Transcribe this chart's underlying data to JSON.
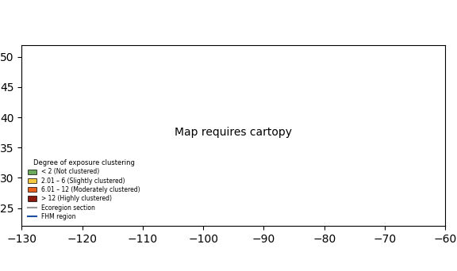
{
  "title": "",
  "legend_title": "Degree of exposure clustering",
  "legend_items": [
    {
      "label": "< 2 (Not clustered)",
      "color": "#6aaa5a"
    },
    {
      "label": "2.01 – 6 (Slightly clustered)",
      "color": "#f5c842"
    },
    {
      "label": "6.01 – 12 (Moderately clustered)",
      "color": "#e8601c"
    },
    {
      "label": "> 12 (Highly clustered)",
      "color": "#8b1a0e"
    }
  ],
  "legend_lines": [
    {
      "label": "Ecoregion section",
      "color": "#999999"
    },
    {
      "label": "FHM region",
      "color": "#1a4fa0"
    }
  ],
  "background_color": "#ffffff",
  "map_background": "#f5ede0",
  "border_color": "#1a4fa0",
  "ecoregion_color": "#aaaaaa",
  "forest_green": "#6aaa5a",
  "hotspot_orange": "#f5a020",
  "hotspot_red_orange": "#e8601c",
  "hotspot_dark_red": "#8b1a0e",
  "figsize": [
    5.76,
    3.42
  ],
  "dpi": 100
}
